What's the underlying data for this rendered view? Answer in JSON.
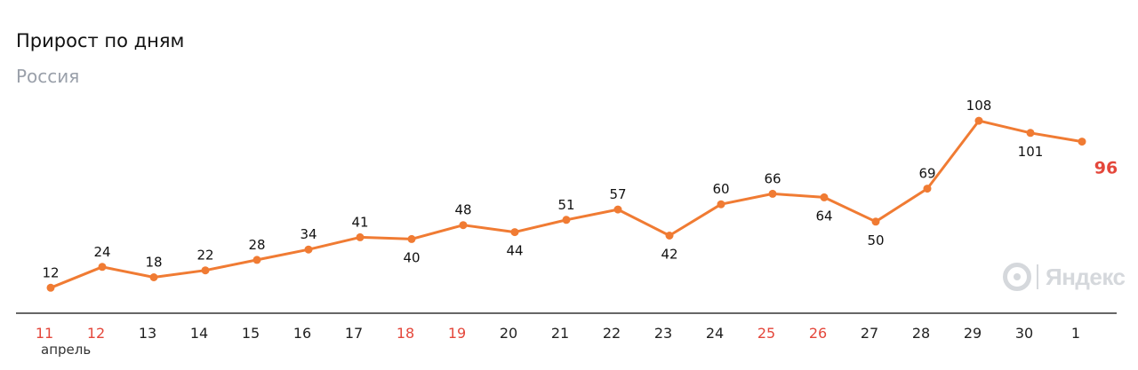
{
  "header": {
    "title": "Прирост по дням",
    "subtitle": "Россия"
  },
  "logo": {
    "text": "Яндекс",
    "icon": "yandex-circle-icon"
  },
  "colors": {
    "line": "#f07b33",
    "holiday": "#e4473b",
    "weekday": "#222222",
    "last_value": "#e4473b",
    "axis": "#333333"
  },
  "chart_data": {
    "type": "line",
    "title": "Прирост по дням",
    "subtitle": "Россия",
    "xlabel": "",
    "ylabel": "",
    "month_label": "апрель",
    "categories": [
      "11",
      "12",
      "13",
      "14",
      "15",
      "16",
      "17",
      "18",
      "19",
      "20",
      "21",
      "22",
      "23",
      "24",
      "25",
      "26",
      "27",
      "28",
      "29",
      "30",
      "1"
    ],
    "holiday_flags": [
      true,
      true,
      false,
      false,
      false,
      false,
      false,
      true,
      true,
      false,
      false,
      false,
      false,
      false,
      true,
      true,
      false,
      false,
      false,
      false,
      false
    ],
    "values": [
      12,
      24,
      18,
      22,
      28,
      34,
      41,
      40,
      48,
      44,
      51,
      57,
      42,
      60,
      66,
      64,
      50,
      69,
      108,
      101,
      96
    ],
    "label_positions": [
      "above",
      "above",
      "above",
      "above",
      "above",
      "above",
      "above",
      "below",
      "above",
      "below",
      "above",
      "above",
      "below",
      "above",
      "above",
      "below",
      "below",
      "above",
      "above",
      "below",
      "right"
    ],
    "grid": false,
    "legend": "none"
  }
}
